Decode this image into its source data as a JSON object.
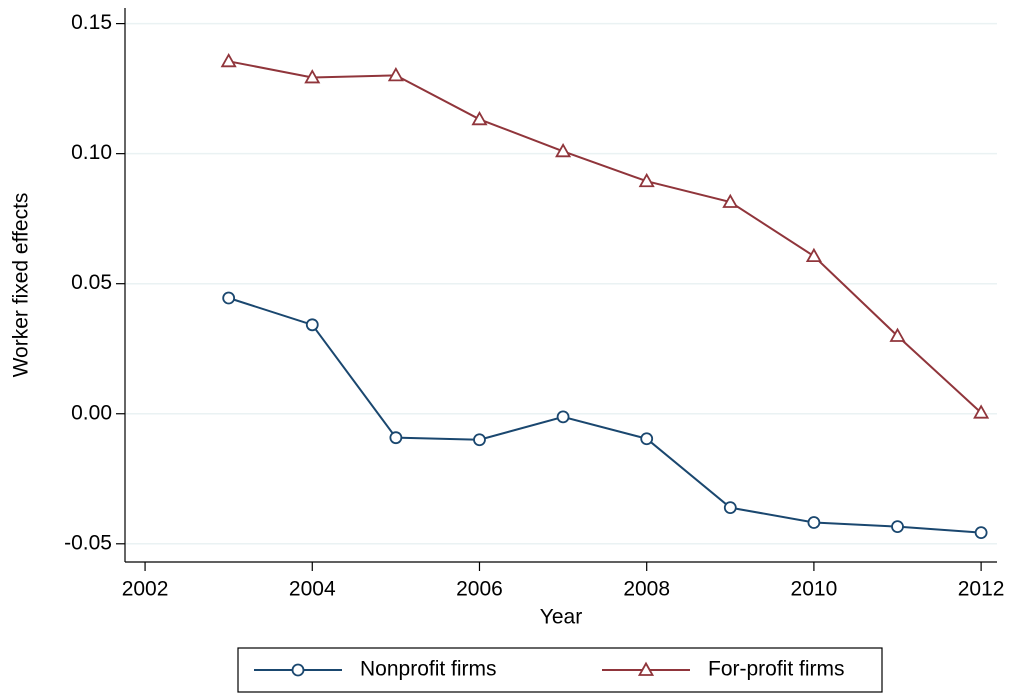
{
  "chart_data": {
    "type": "line",
    "x_label": "Year",
    "y_label": "Worker fixed effects",
    "x": [
      2003,
      2004,
      2005,
      2006,
      2007,
      2008,
      2009,
      2010,
      2011,
      2012
    ],
    "series": [
      {
        "name": "Nonprofit firms",
        "color": "#1a476f",
        "marker": "circle",
        "values": [
          0.0445,
          0.0342,
          -0.0092,
          -0.01,
          -0.0012,
          -0.0096,
          -0.0361,
          -0.0418,
          -0.0434,
          -0.0457
        ]
      },
      {
        "name": "For-profit firms",
        "color": "#90353b",
        "marker": "triangle",
        "values": [
          0.1355,
          0.1293,
          0.1301,
          0.1132,
          0.1009,
          0.0894,
          0.0814,
          0.0606,
          0.0299,
          0.0004
        ]
      }
    ],
    "xlim": [
      2001.76,
      2012.19
    ],
    "xticks": [
      2002,
      2004,
      2006,
      2008,
      2010,
      2012
    ],
    "ylim": [
      -0.057,
      0.156
    ],
    "yticks": [
      {
        "value": -0.05,
        "label": "-0.05"
      },
      {
        "value": 0,
        "label": "0.00"
      },
      0.05,
      {
        "value": 0.1,
        "label": "0.10"
      },
      0.15
    ],
    "grid": true,
    "legend": "bottom"
  }
}
